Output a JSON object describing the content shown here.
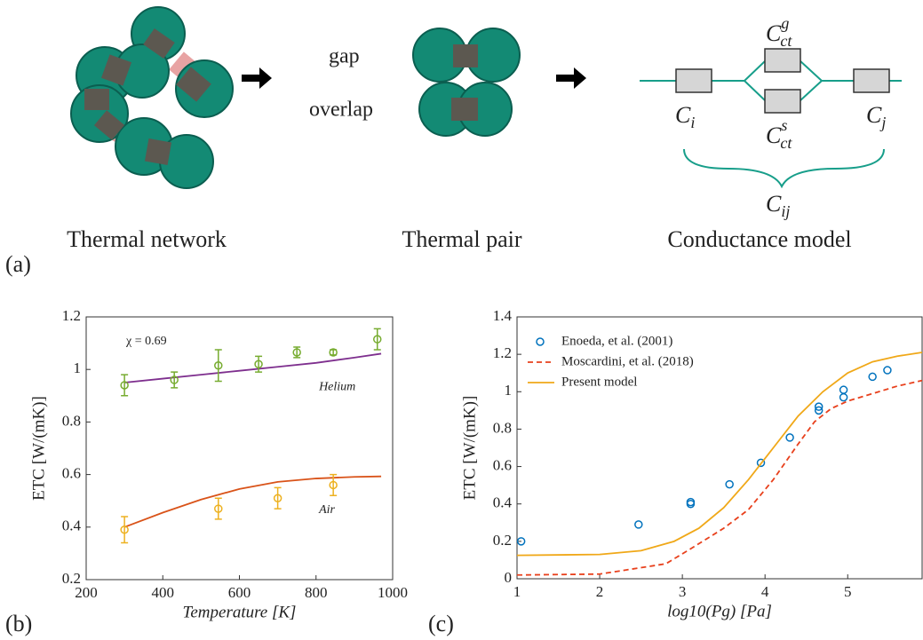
{
  "diagram": {
    "panel_label": "(a)",
    "captions": [
      "Thermal network",
      "Thermal pair",
      "Conductance model"
    ],
    "pair_labels": [
      "gap",
      "overlap"
    ],
    "conductances": [
      {
        "symbol": "C",
        "sub": "i"
      },
      {
        "symbol": "C",
        "sub": "ct",
        "sup": "g"
      },
      {
        "symbol": "C",
        "sub": "ct",
        "sup": "s"
      },
      {
        "symbol": "C",
        "sub": "j"
      },
      {
        "symbol": "C",
        "sub": "ij"
      }
    ]
  },
  "chart_data": [
    {
      "type": "line",
      "panel_label": "(b)",
      "xlabel": "Temperature  [K]",
      "ylabel": "ETC  [W/(mK)]",
      "xlim": [
        200,
        1000
      ],
      "ylim": [
        0.2,
        1.2
      ],
      "xticks": [
        200,
        400,
        600,
        800,
        1000
      ],
      "yticks": [
        0.2,
        0.4,
        0.6,
        0.8,
        1,
        1.2
      ],
      "annotations": [
        "χ = 0.69"
      ],
      "series": [
        {
          "name": "Helium",
          "color": "#7e2f8e",
          "style": "solid",
          "x": [
            300,
            400,
            500,
            600,
            700,
            800,
            900,
            970
          ],
          "values": [
            0.95,
            0.965,
            0.98,
            0.995,
            1.01,
            1.025,
            1.045,
            1.06
          ]
        },
        {
          "color": "#77ac30",
          "style": "errorbar",
          "x": [
            300,
            430,
            545,
            650,
            750,
            845,
            960
          ],
          "values": [
            0.94,
            0.96,
            1.015,
            1.02,
            1.065,
            1.065,
            1.115
          ],
          "errors": [
            0.04,
            0.03,
            0.06,
            0.03,
            0.02,
            0.01,
            0.04
          ]
        },
        {
          "name": "Air",
          "color": "#d95319",
          "style": "solid",
          "x": [
            300,
            400,
            500,
            600,
            700,
            800,
            900,
            970
          ],
          "values": [
            0.4,
            0.455,
            0.505,
            0.545,
            0.572,
            0.585,
            0.591,
            0.593
          ]
        },
        {
          "color": "#edb120",
          "style": "errorbar",
          "x": [
            300,
            545,
            700,
            845
          ],
          "values": [
            0.39,
            0.47,
            0.51,
            0.56
          ],
          "errors": [
            0.05,
            0.04,
            0.04,
            0.04
          ]
        }
      ]
    },
    {
      "type": "line",
      "panel_label": "(c)",
      "xlabel": "log10(Pg)  [Pa]",
      "ylabel": "ETC  [W/(mK)]",
      "xlim": [
        1,
        5.9
      ],
      "ylim": [
        0,
        1.4
      ],
      "xticks": [
        1,
        2,
        3,
        4,
        5
      ],
      "yticks": [
        0,
        0.2,
        0.4,
        0.6,
        0.8,
        1,
        1.2,
        1.4
      ],
      "legend": "upper left",
      "series": [
        {
          "name": "Enoeda, et al. (2001)",
          "color": "#0072bd",
          "style": "markers",
          "x": [
            1.05,
            2.47,
            3.1,
            3.1,
            3.57,
            3.95,
            4.3,
            4.65,
            4.65,
            4.95,
            4.95,
            5.3,
            5.48
          ],
          "values": [
            0.2,
            0.29,
            0.41,
            0.4,
            0.505,
            0.62,
            0.755,
            0.92,
            0.9,
            1.01,
            0.97,
            1.08,
            1.115
          ]
        },
        {
          "name": "Moscardini, et al. (2018)",
          "color": "#e8401c",
          "style": "dashed",
          "x": [
            1,
            2,
            2.8,
            3.1,
            3.5,
            3.8,
            4.1,
            4.4,
            4.6,
            4.8,
            5.0,
            5.3,
            5.6,
            5.9
          ],
          "values": [
            0.02,
            0.025,
            0.08,
            0.16,
            0.27,
            0.37,
            0.53,
            0.72,
            0.84,
            0.91,
            0.95,
            0.99,
            1.03,
            1.06
          ]
        },
        {
          "name": "Present model",
          "color": "#f0a818",
          "style": "solid",
          "x": [
            1,
            2,
            2.5,
            2.9,
            3.2,
            3.5,
            3.8,
            4.1,
            4.4,
            4.7,
            5.0,
            5.3,
            5.6,
            5.9
          ],
          "values": [
            0.125,
            0.13,
            0.15,
            0.2,
            0.27,
            0.38,
            0.53,
            0.7,
            0.87,
            1.0,
            1.1,
            1.16,
            1.19,
            1.21
          ]
        }
      ]
    }
  ]
}
